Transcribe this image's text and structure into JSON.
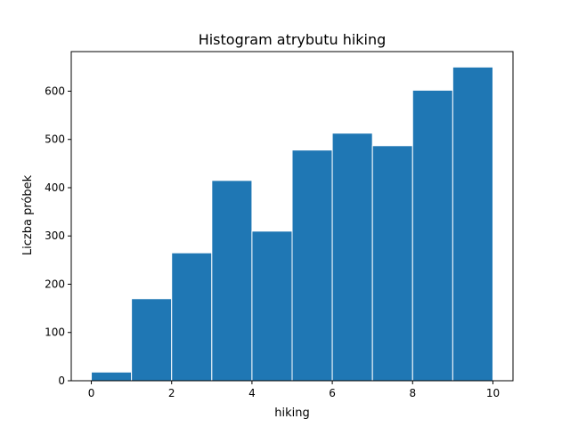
{
  "chart_data": {
    "type": "bar",
    "title": "Histogram atrybutu hiking",
    "xlabel": "hiking",
    "ylabel": "Liczba próbek",
    "bin_edges": [
      0,
      1,
      2,
      3,
      4,
      5,
      6,
      7,
      8,
      9,
      10
    ],
    "values": [
      18,
      170,
      265,
      415,
      310,
      478,
      513,
      487,
      602,
      650
    ],
    "xlim": [
      -0.5,
      10.5
    ],
    "ylim": [
      0,
      682
    ],
    "xticks": [
      0,
      2,
      4,
      6,
      8,
      10
    ],
    "yticks": [
      0,
      100,
      200,
      300,
      400,
      500,
      600
    ],
    "grid": false,
    "bar_color": "#1f77b4",
    "edge_color": "#ffffff"
  }
}
